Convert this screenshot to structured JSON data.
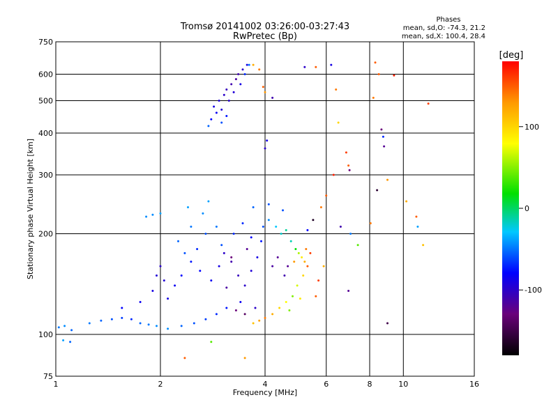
{
  "header": {
    "title": "Tromsø 20141002 03:26:00-03:27:43",
    "subtitle": "RwPretec (Bp)",
    "stats_heading": "Phases",
    "stats_o": "mean, sd,O: -74.3, 21.2",
    "stats_x": "mean, sd,X: 100.4, 28.4"
  },
  "chart_data": {
    "type": "scatter",
    "xlabel": "Frequency [MHz]",
    "ylabel": "Stationary phase Virtual Height [km]",
    "x_scale": "log",
    "y_scale": "log",
    "xlim": [
      1,
      16
    ],
    "ylim": [
      75,
      750
    ],
    "x_ticks": [
      {
        "value": 1,
        "label": "1"
      },
      {
        "value": 2,
        "label": "2"
      },
      {
        "value": 4,
        "label": "4"
      },
      {
        "value": 6,
        "label": "6"
      },
      {
        "value": 8,
        "label": "8"
      },
      {
        "value": 10,
        "label": "10"
      },
      {
        "value": 16,
        "label": "16"
      }
    ],
    "y_ticks": [
      {
        "value": 75,
        "label": "75"
      },
      {
        "value": 100,
        "label": "100"
      },
      {
        "value": 200,
        "label": "200"
      },
      {
        "value": 300,
        "label": "300"
      },
      {
        "value": 400,
        "label": "400"
      },
      {
        "value": 500,
        "label": "500"
      },
      {
        "value": 600,
        "label": "600"
      },
      {
        "value": 750,
        "label": "750"
      }
    ],
    "grid": true,
    "colorbar": {
      "title": "[deg]",
      "range": [
        -180,
        180
      ],
      "ticks": [
        {
          "value": 100,
          "label": "100"
        },
        {
          "value": 0,
          "label": "0"
        },
        {
          "value": -100,
          "label": "-100"
        }
      ]
    },
    "points": [
      [
        1.02,
        105,
        -50
      ],
      [
        1.06,
        106,
        -45
      ],
      [
        1.11,
        103,
        -55
      ],
      [
        1.25,
        108,
        -50
      ],
      [
        1.35,
        110,
        -55
      ],
      [
        1.45,
        111,
        -60
      ],
      [
        1.55,
        112,
        -65
      ],
      [
        1.65,
        111,
        -70
      ],
      [
        1.75,
        108,
        -55
      ],
      [
        1.85,
        107,
        -50
      ],
      [
        1.95,
        106,
        -45
      ],
      [
        2.1,
        104,
        -45
      ],
      [
        2.3,
        106,
        -55
      ],
      [
        2.5,
        108,
        -60
      ],
      [
        2.7,
        111,
        -65
      ],
      [
        2.9,
        115,
        -70
      ],
      [
        3.1,
        120,
        -75
      ],
      [
        3.4,
        125,
        -85
      ],
      [
        1.55,
        120,
        -80
      ],
      [
        1.75,
        125,
        -85
      ],
      [
        1.9,
        135,
        -90
      ],
      [
        1.95,
        150,
        -95
      ],
      [
        2.0,
        160,
        -100
      ],
      [
        2.05,
        145,
        -95
      ],
      [
        2.1,
        128,
        -90
      ],
      [
        2.2,
        140,
        -85
      ],
      [
        2.3,
        150,
        -80
      ],
      [
        2.45,
        165,
        -75
      ],
      [
        2.55,
        180,
        -70
      ],
      [
        2.7,
        200,
        -60
      ],
      [
        2.65,
        230,
        -45
      ],
      [
        2.75,
        250,
        -40
      ],
      [
        2.45,
        210,
        -50
      ],
      [
        2.35,
        175,
        -60
      ],
      [
        2.25,
        190,
        -55
      ],
      [
        2.6,
        155,
        -80
      ],
      [
        2.8,
        145,
        -85
      ],
      [
        2.95,
        160,
        -90
      ],
      [
        3.05,
        175,
        -100
      ],
      [
        3.2,
        165,
        -110
      ],
      [
        3.35,
        150,
        -105
      ],
      [
        3.5,
        140,
        -100
      ],
      [
        3.65,
        155,
        -95
      ],
      [
        3.8,
        170,
        -90
      ],
      [
        3.9,
        190,
        -75
      ],
      [
        3.95,
        210,
        -60
      ],
      [
        4.1,
        220,
        -45
      ],
      [
        4.3,
        210,
        -30
      ],
      [
        4.45,
        200,
        -20
      ],
      [
        4.6,
        205,
        -10
      ],
      [
        4.75,
        190,
        -15
      ],
      [
        4.9,
        180,
        20
      ],
      [
        5.0,
        175,
        60
      ],
      [
        5.1,
        170,
        90
      ],
      [
        5.2,
        165,
        120
      ],
      [
        5.3,
        160,
        150
      ],
      [
        5.15,
        150,
        100
      ],
      [
        4.95,
        140,
        70
      ],
      [
        4.8,
        130,
        50
      ],
      [
        4.6,
        125,
        80
      ],
      [
        4.4,
        120,
        100
      ],
      [
        4.2,
        115,
        120
      ],
      [
        4.0,
        112,
        140
      ],
      [
        3.85,
        110,
        125
      ],
      [
        3.7,
        108,
        110
      ],
      [
        4.55,
        150,
        -110
      ],
      [
        4.65,
        160,
        -120
      ],
      [
        4.85,
        165,
        130
      ],
      [
        5.25,
        180,
        140
      ],
      [
        5.4,
        175,
        160
      ],
      [
        4.35,
        170,
        -120
      ],
      [
        4.2,
        160,
        -115
      ],
      [
        3.3,
        118,
        -130
      ],
      [
        3.5,
        115,
        -140
      ],
      [
        3.75,
        120,
        -100
      ],
      [
        3.1,
        138,
        -115
      ],
      [
        3.2,
        170,
        -130
      ],
      [
        3.55,
        180,
        -120
      ],
      [
        3.65,
        195,
        -80
      ],
      [
        3.45,
        215,
        -70
      ],
      [
        3.25,
        200,
        -70
      ],
      [
        3.0,
        185,
        -60
      ],
      [
        2.9,
        210,
        -50
      ],
      [
        1.82,
        225,
        -45
      ],
      [
        1.9,
        228,
        -45
      ],
      [
        2.0,
        230,
        -40
      ],
      [
        2.4,
        240,
        -40
      ],
      [
        3.7,
        240,
        -55
      ],
      [
        4.1,
        245,
        -60
      ],
      [
        4.5,
        235,
        -60
      ],
      [
        2.85,
        480,
        -90
      ],
      [
        2.95,
        500,
        -95
      ],
      [
        3.05,
        520,
        -100
      ],
      [
        3.1,
        540,
        -105
      ],
      [
        3.2,
        560,
        -110
      ],
      [
        3.3,
        580,
        -115
      ],
      [
        3.35,
        600,
        -110
      ],
      [
        3.45,
        620,
        -100
      ],
      [
        3.55,
        640,
        -90
      ],
      [
        2.8,
        440,
        -80
      ],
      [
        2.9,
        460,
        -85
      ],
      [
        3.0,
        470,
        -95
      ],
      [
        3.15,
        500,
        -100
      ],
      [
        3.25,
        530,
        -95
      ],
      [
        3.4,
        560,
        -90
      ],
      [
        3.5,
        600,
        -70
      ],
      [
        3.6,
        640,
        -50
      ],
      [
        2.75,
        420,
        -55
      ],
      [
        3.0,
        430,
        -60
      ],
      [
        3.1,
        450,
        -75
      ],
      [
        3.7,
        640,
        120
      ],
      [
        3.85,
        620,
        140
      ],
      [
        3.95,
        550,
        150
      ],
      [
        4.0,
        530,
        130
      ],
      [
        4.2,
        510,
        -110
      ],
      [
        4.05,
        380,
        -90
      ],
      [
        4.0,
        360,
        -100
      ],
      [
        5.2,
        630,
        -100
      ],
      [
        5.6,
        630,
        150
      ],
      [
        6.2,
        640,
        -90
      ],
      [
        6.4,
        540,
        140
      ],
      [
        6.5,
        430,
        100
      ],
      [
        6.85,
        350,
        160
      ],
      [
        6.95,
        320,
        150
      ],
      [
        7.0,
        310,
        -130
      ],
      [
        8.3,
        650,
        150
      ],
      [
        8.5,
        600,
        150
      ],
      [
        8.65,
        410,
        -130
      ],
      [
        8.75,
        390,
        -70
      ],
      [
        8.8,
        365,
        -120
      ],
      [
        9.0,
        290,
        130
      ],
      [
        8.4,
        270,
        -160
      ],
      [
        8.2,
        510,
        140
      ],
      [
        9.4,
        595,
        170
      ],
      [
        11.8,
        490,
        160
      ],
      [
        10.2,
        250,
        120
      ],
      [
        10.9,
        225,
        150
      ],
      [
        11.0,
        210,
        -40
      ],
      [
        11.4,
        185,
        110
      ],
      [
        6.3,
        300,
        170
      ],
      [
        6.0,
        260,
        150
      ],
      [
        5.8,
        240,
        140
      ],
      [
        5.5,
        220,
        -165
      ],
      [
        5.3,
        205,
        -80
      ],
      [
        6.6,
        210,
        -110
      ],
      [
        7.05,
        200,
        -50
      ],
      [
        7.4,
        185,
        40
      ],
      [
        8.05,
        215,
        140
      ],
      [
        5.9,
        160,
        120
      ],
      [
        6.95,
        135,
        -120
      ],
      [
        9.0,
        108,
        -150
      ],
      [
        2.35,
        85,
        150
      ],
      [
        3.5,
        85,
        130
      ],
      [
        1.1,
        95,
        -55
      ],
      [
        1.05,
        96,
        -40
      ],
      [
        2.8,
        95,
        40
      ],
      [
        5.6,
        130,
        150
      ],
      [
        5.7,
        145,
        160
      ],
      [
        4.7,
        118,
        50
      ],
      [
        5.05,
        128,
        90
      ]
    ]
  }
}
